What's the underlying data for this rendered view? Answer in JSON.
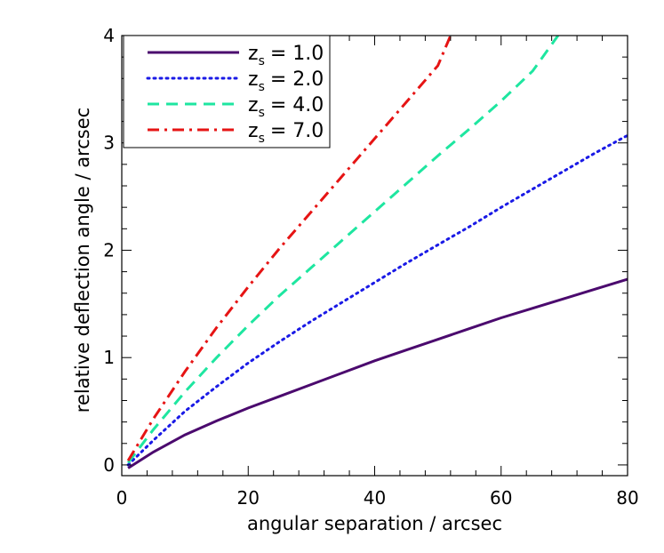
{
  "chart_data": {
    "type": "line",
    "title": "",
    "xlabel": "angular separation / arcsec",
    "ylabel": "relative deflection angle / arcsec",
    "xlim": [
      0,
      80
    ],
    "ylim": [
      -0.1,
      4.0
    ],
    "xticks": [
      0,
      20,
      40,
      60,
      80
    ],
    "xtick_labels": [
      "0",
      "20",
      "40",
      "60",
      "80"
    ],
    "yticks": [
      0,
      1,
      2,
      3,
      4
    ],
    "ytick_labels": [
      "0",
      "1",
      "2",
      "3",
      "4"
    ],
    "grid": false,
    "legend_position": "top-left",
    "series": [
      {
        "legend_main": "z",
        "legend_sub": "s",
        "legend_value": "= 1.0",
        "color": "#4b0a6e",
        "style": "solid",
        "x": [
          1,
          5,
          10,
          15,
          20,
          25,
          30,
          35,
          40,
          45,
          50,
          55,
          60,
          65,
          70,
          75,
          80
        ],
        "y": [
          -0.03,
          0.12,
          0.28,
          0.41,
          0.53,
          0.64,
          0.75,
          0.86,
          0.97,
          1.07,
          1.17,
          1.27,
          1.37,
          1.46,
          1.55,
          1.64,
          1.73
        ]
      },
      {
        "legend_main": "z",
        "legend_sub": "s",
        "legend_value": "= 2.0",
        "color": "#1a1ae6",
        "style": "dotted",
        "x": [
          1,
          5,
          10,
          15,
          20,
          25,
          30,
          35,
          40,
          45,
          50,
          55,
          60,
          65,
          70,
          75,
          80
        ],
        "y": [
          0.0,
          0.23,
          0.5,
          0.73,
          0.95,
          1.15,
          1.34,
          1.52,
          1.7,
          1.88,
          2.05,
          2.22,
          2.4,
          2.57,
          2.74,
          2.91,
          3.07
        ]
      },
      {
        "legend_main": "z",
        "legend_sub": "s",
        "legend_value": "= 4.0",
        "color": "#1ee6a0",
        "style": "dashed",
        "x": [
          1,
          5,
          10,
          15,
          20,
          25,
          30,
          35,
          40,
          45,
          50,
          55,
          60,
          65,
          69
        ],
        "y": [
          0.02,
          0.33,
          0.68,
          1.0,
          1.3,
          1.58,
          1.84,
          2.1,
          2.36,
          2.62,
          2.88,
          3.13,
          3.39,
          3.67,
          4.0
        ]
      },
      {
        "legend_main": "z",
        "legend_sub": "s",
        "legend_value": "= 7.0",
        "color": "#e61414",
        "style": "dashdot",
        "x": [
          1,
          5,
          10,
          15,
          20,
          25,
          30,
          35,
          40,
          45,
          50,
          52
        ],
        "y": [
          0.04,
          0.43,
          0.87,
          1.28,
          1.66,
          2.02,
          2.36,
          2.7,
          3.04,
          3.38,
          3.72,
          4.0
        ]
      }
    ]
  }
}
